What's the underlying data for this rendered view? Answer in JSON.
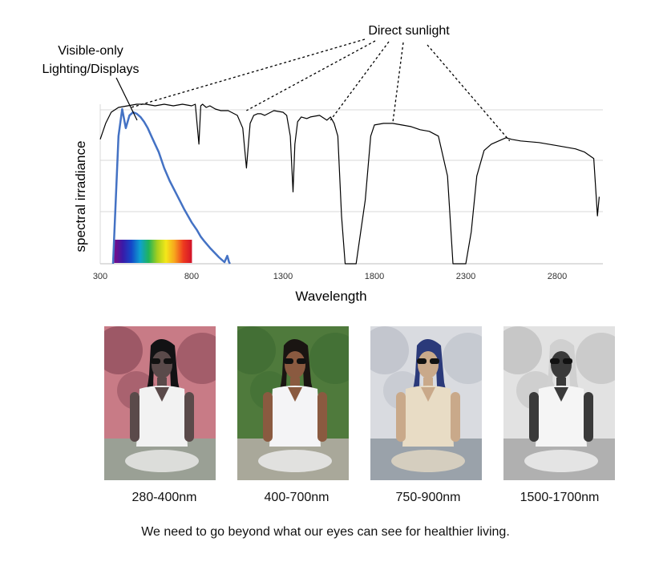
{
  "chart_data": {
    "type": "line",
    "xlabel": "Wavelength",
    "ylabel": "spectral irradiance",
    "xlim": [
      300,
      3050
    ],
    "ylim": [
      0,
      1
    ],
    "x_ticks": [
      300,
      800,
      1300,
      1800,
      2300,
      2800
    ],
    "grid": true,
    "annotations": [
      {
        "text": "Visible-only\nLighting/Displays",
        "target": "visible-series"
      },
      {
        "text": "Direct sunlight",
        "targets": [
          [
            470,
            0.98
          ],
          [
            1100,
            0.96
          ],
          [
            1560,
            0.9
          ],
          [
            1900,
            0.88
          ],
          [
            2540,
            0.77
          ]
        ]
      }
    ],
    "visible_spectrum_bar": {
      "x_range": [
        380,
        780
      ],
      "colors": [
        "#7a0c86",
        "#3a1aa8",
        "#1447c8",
        "#0fa0d0",
        "#20b35a",
        "#a6cf1e",
        "#f4e71a",
        "#f7a31d",
        "#ee3b1f",
        "#d1122a"
      ]
    },
    "series": [
      {
        "id": "sunlight",
        "color": "#000000",
        "x": [
          300,
          330,
          360,
          400,
          450,
          500,
          550,
          600,
          650,
          700,
          750,
          800,
          820,
          840,
          850,
          860,
          880,
          900,
          930,
          960,
          1000,
          1050,
          1080,
          1100,
          1120,
          1140,
          1160,
          1180,
          1200,
          1250,
          1300,
          1320,
          1340,
          1355,
          1365,
          1380,
          1400,
          1430,
          1450,
          1500,
          1540,
          1560,
          1580,
          1600,
          1620,
          1640,
          1650,
          1700,
          1750,
          1780,
          1800,
          1850,
          1900,
          1950,
          2000,
          2050,
          2100,
          2150,
          2200,
          2230,
          2260,
          2300,
          2330,
          2360,
          2400,
          2440,
          2480,
          2500,
          2520,
          2550,
          2600,
          2700,
          2800,
          2900,
          2950,
          3000,
          3020,
          3030
        ],
        "y": [
          0.78,
          0.88,
          0.95,
          0.98,
          0.99,
          1.0,
          1.0,
          0.99,
          1.0,
          0.99,
          1.0,
          0.99,
          1.0,
          0.75,
          0.99,
          1.0,
          0.98,
          0.99,
          0.97,
          0.96,
          0.96,
          0.93,
          0.85,
          0.6,
          0.88,
          0.93,
          0.94,
          0.94,
          0.93,
          0.96,
          0.95,
          0.93,
          0.8,
          0.45,
          0.75,
          0.89,
          0.92,
          0.91,
          0.92,
          0.93,
          0.9,
          0.92,
          0.88,
          0.8,
          0.3,
          0.0,
          0.0,
          0.0,
          0.4,
          0.8,
          0.87,
          0.88,
          0.88,
          0.87,
          0.86,
          0.84,
          0.83,
          0.8,
          0.55,
          0.0,
          0.0,
          0.0,
          0.2,
          0.55,
          0.71,
          0.75,
          0.77,
          0.78,
          0.79,
          0.78,
          0.77,
          0.76,
          0.74,
          0.72,
          0.7,
          0.66,
          0.3,
          0.42
        ]
      },
      {
        "id": "visible",
        "color": "#4472c4",
        "x": [
          370,
          385,
          400,
          420,
          440,
          460,
          480,
          500,
          520,
          540,
          560,
          580,
          600,
          620,
          650,
          680,
          720,
          760,
          800,
          830,
          850,
          870,
          900,
          950,
          980,
          995,
          1005,
          1010
        ],
        "y": [
          0.0,
          0.4,
          0.8,
          0.97,
          0.85,
          0.93,
          0.95,
          0.94,
          0.92,
          0.89,
          0.85,
          0.8,
          0.75,
          0.7,
          0.6,
          0.52,
          0.43,
          0.34,
          0.26,
          0.21,
          0.17,
          0.14,
          0.1,
          0.04,
          0.01,
          0.05,
          0.01,
          0.0
        ]
      }
    ]
  },
  "photos": [
    {
      "caption": "280-400nm",
      "tone": "uv",
      "sky": "#c87b86",
      "bg": "#8a4a58",
      "ground": "#9aa095",
      "skin": "#5a4a4a",
      "shirt": "#f2f2f2",
      "hair": "#121214"
    },
    {
      "caption": "400-700nm",
      "tone": "visible",
      "sky": "#4f7a3c",
      "bg": "#3e6b32",
      "ground": "#a9a89a",
      "skin": "#8a5a40",
      "shirt": "#f4f4f6",
      "hair": "#1a1512"
    },
    {
      "caption": "750-900nm",
      "tone": "nir",
      "sky": "#d9dbe0",
      "bg": "#b9bec6",
      "ground": "#9aa2aa",
      "skin": "#c9a98a",
      "shirt": "#e8dcc5",
      "hair": "#2b3a7a"
    },
    {
      "caption": "1500-1700nm",
      "tone": "swir",
      "sky": "#e2e2e2",
      "bg": "#bcbcbc",
      "ground": "#b0b0b0",
      "skin": "#3a3a3a",
      "shirt": "#f5f5f5",
      "hair": "#d0d0d0"
    }
  ],
  "footer": "We need to go beyond what our eyes can see for healthier living."
}
